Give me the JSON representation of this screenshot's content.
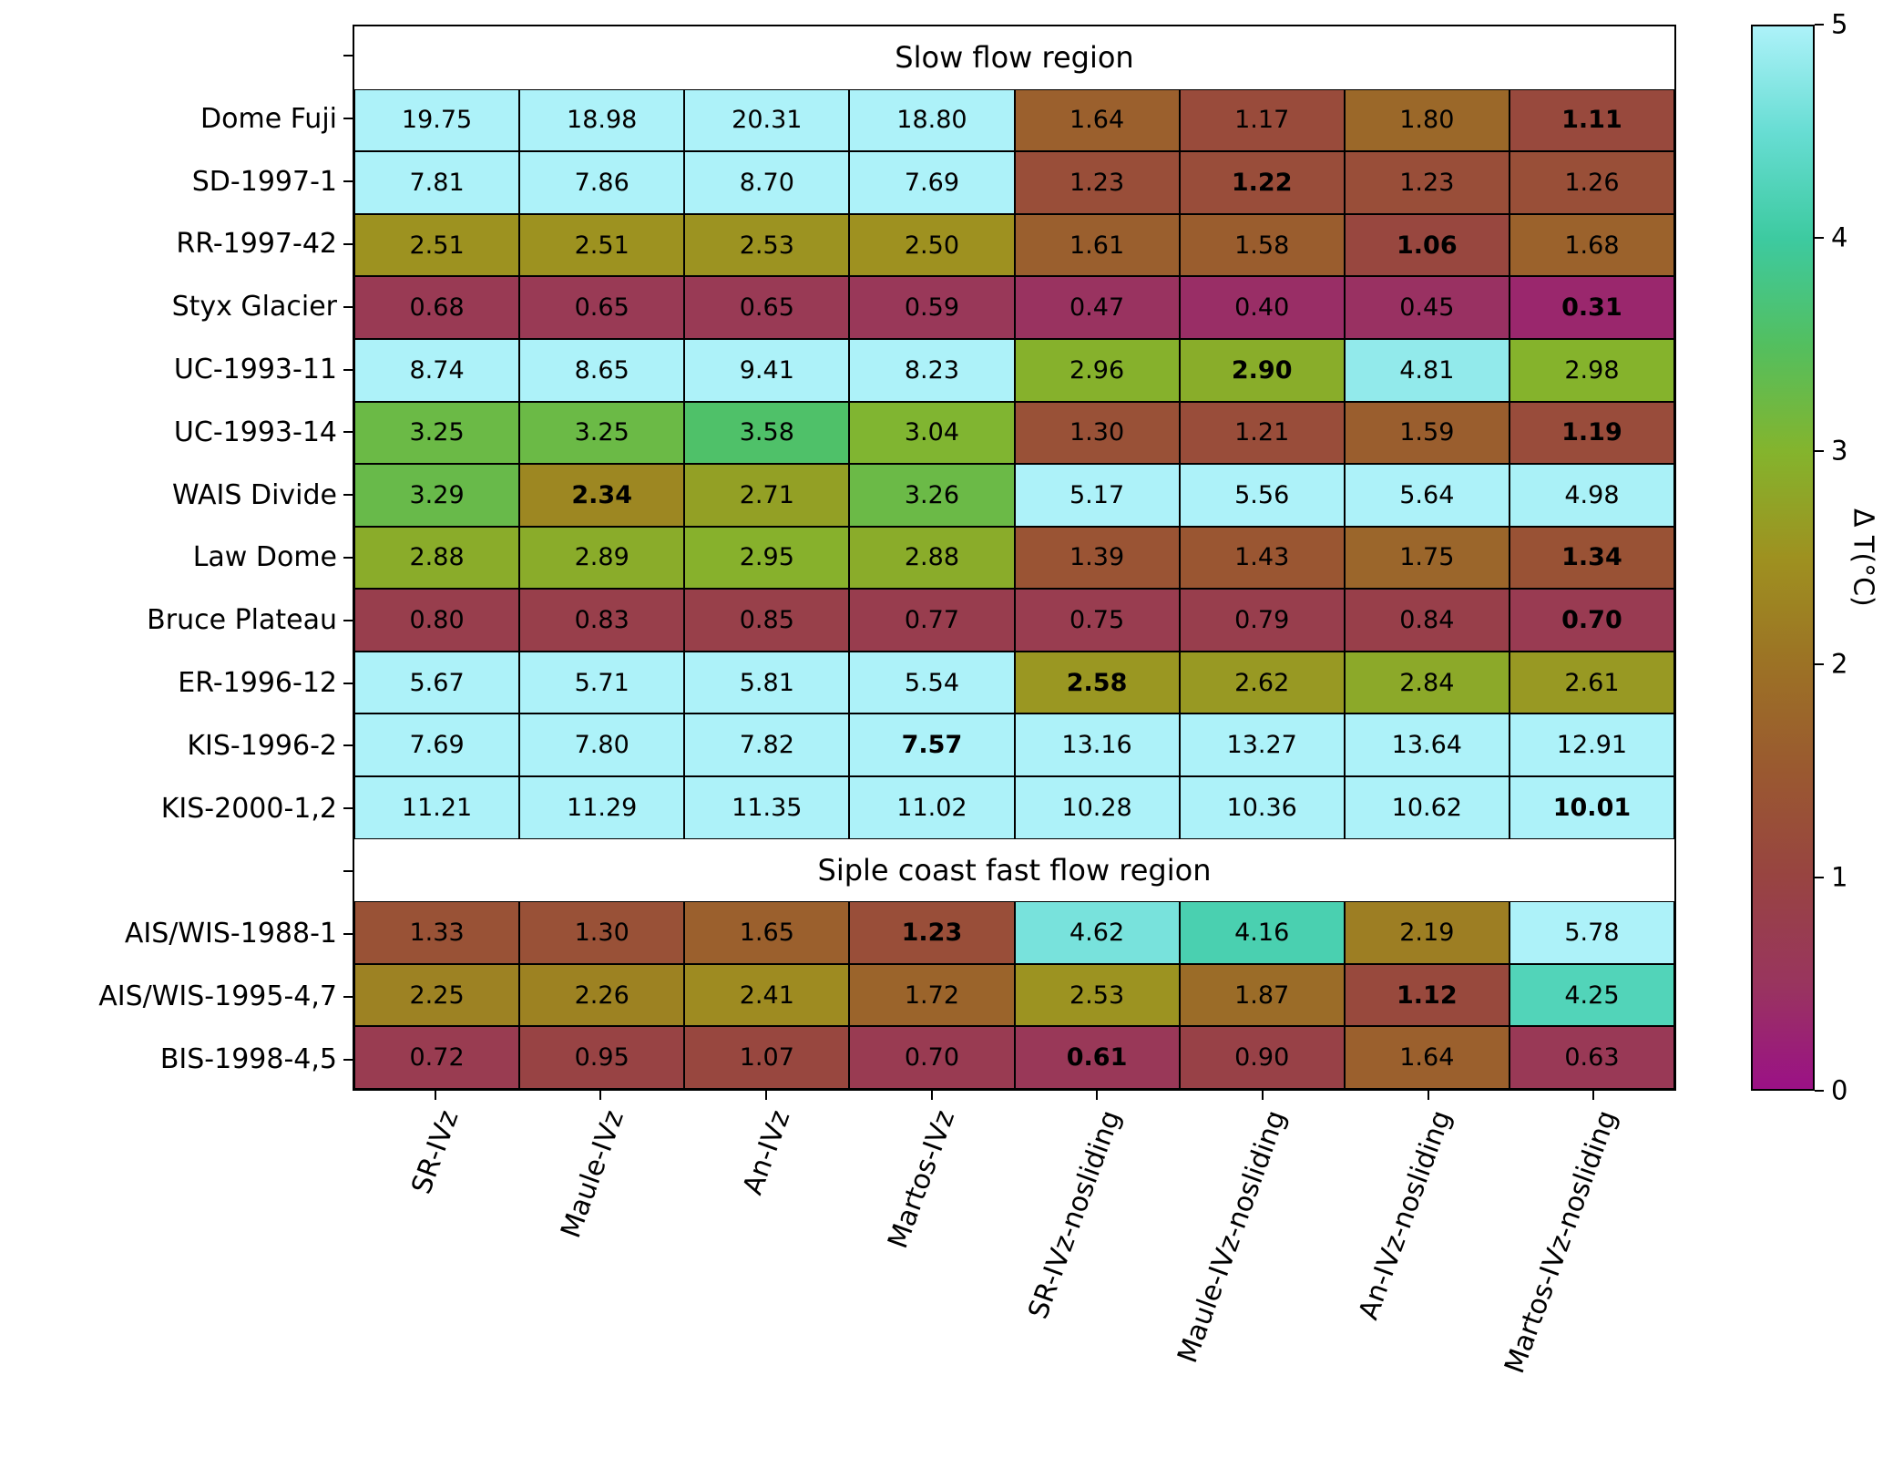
{
  "chart_data": {
    "type": "heatmap",
    "section_titles": [
      "Slow flow region",
      "Siple coast fast flow region"
    ],
    "columns": [
      "SR-IVz",
      "Maule-IVz",
      "An-IVz",
      "Martos-IVz",
      "SR-IVz-nosliding",
      "Maule-IVz-nosliding",
      "An-IVz-nosliding",
      "Martos-IVz-nosliding"
    ],
    "rows": [
      {
        "type": "header",
        "label": "Slow flow region"
      },
      {
        "type": "data",
        "label": "Dome Fuji",
        "values": [
          "19.75",
          "18.98",
          "20.31",
          "18.80",
          "1.64",
          "1.17",
          "1.80",
          "1.11"
        ],
        "bold_index": 7
      },
      {
        "type": "data",
        "label": "SD-1997-1",
        "values": [
          "7.81",
          "7.86",
          "8.70",
          "7.69",
          "1.23",
          "1.22",
          "1.23",
          "1.26"
        ],
        "bold_index": 5
      },
      {
        "type": "data",
        "label": "RR-1997-42",
        "values": [
          "2.51",
          "2.51",
          "2.53",
          "2.50",
          "1.61",
          "1.58",
          "1.06",
          "1.68"
        ],
        "bold_index": 6
      },
      {
        "type": "data",
        "label": "Styx Glacier",
        "values": [
          "0.68",
          "0.65",
          "0.65",
          "0.59",
          "0.47",
          "0.40",
          "0.45",
          "0.31"
        ],
        "bold_index": 7
      },
      {
        "type": "data",
        "label": "UC-1993-11",
        "values": [
          "8.74",
          "8.65",
          "9.41",
          "8.23",
          "2.96",
          "2.90",
          "4.81",
          "2.98"
        ],
        "bold_index": 5
      },
      {
        "type": "data",
        "label": "UC-1993-14",
        "values": [
          "3.25",
          "3.25",
          "3.58",
          "3.04",
          "1.30",
          "1.21",
          "1.59",
          "1.19"
        ],
        "bold_index": 7
      },
      {
        "type": "data",
        "label": "WAIS Divide",
        "values": [
          "3.29",
          "2.34",
          "2.71",
          "3.26",
          "5.17",
          "5.56",
          "5.64",
          "4.98"
        ],
        "bold_index": 1
      },
      {
        "type": "data",
        "label": "Law Dome",
        "values": [
          "2.88",
          "2.89",
          "2.95",
          "2.88",
          "1.39",
          "1.43",
          "1.75",
          "1.34"
        ],
        "bold_index": 7
      },
      {
        "type": "data",
        "label": "Bruce Plateau",
        "values": [
          "0.80",
          "0.83",
          "0.85",
          "0.77",
          "0.75",
          "0.79",
          "0.84",
          "0.70"
        ],
        "bold_index": 7
      },
      {
        "type": "data",
        "label": "ER-1996-12",
        "values": [
          "5.67",
          "5.71",
          "5.81",
          "5.54",
          "2.58",
          "2.62",
          "2.84",
          "2.61"
        ],
        "bold_index": 4
      },
      {
        "type": "data",
        "label": "KIS-1996-2",
        "values": [
          "7.69",
          "7.80",
          "7.82",
          "7.57",
          "13.16",
          "13.27",
          "13.64",
          "12.91"
        ],
        "bold_index": 3
      },
      {
        "type": "data",
        "label": "KIS-2000-1,2",
        "values": [
          "11.21",
          "11.29",
          "11.35",
          "11.02",
          "10.28",
          "10.36",
          "10.62",
          "10.01"
        ],
        "bold_index": 7
      },
      {
        "type": "header",
        "label": "Siple coast fast flow region"
      },
      {
        "type": "data",
        "label": "AIS/WIS-1988-1",
        "values": [
          "1.33",
          "1.30",
          "1.65",
          "1.23",
          "4.62",
          "4.16",
          "2.19",
          "5.78"
        ],
        "bold_index": 3
      },
      {
        "type": "data",
        "label": "AIS/WIS-1995-4,7",
        "values": [
          "2.25",
          "2.26",
          "2.41",
          "1.72",
          "2.53",
          "1.87",
          "1.12",
          "4.25"
        ],
        "bold_index": 6
      },
      {
        "type": "data",
        "label": "BIS-1998-4,5",
        "values": [
          "0.72",
          "0.95",
          "1.07",
          "0.70",
          "0.61",
          "0.90",
          "1.64",
          "0.63"
        ],
        "bold_index": 4
      }
    ],
    "colorbar": {
      "label": "Δ T(°C)",
      "min": 0,
      "max": 5,
      "ticks": [
        0,
        1,
        2,
        3,
        4,
        5
      ]
    },
    "colormap_stops": [
      {
        "t": 0.0,
        "color": "#9b1186"
      },
      {
        "t": 0.1,
        "color": "#99355e"
      },
      {
        "t": 0.2,
        "color": "#984441"
      },
      {
        "t": 0.3,
        "color": "#9a5930"
      },
      {
        "t": 0.4,
        "color": "#9c7225"
      },
      {
        "t": 0.5,
        "color": "#9e9120"
      },
      {
        "t": 0.6,
        "color": "#84b42d"
      },
      {
        "t": 0.7,
        "color": "#53bf5f"
      },
      {
        "t": 0.8,
        "color": "#3dcaa0"
      },
      {
        "t": 0.9,
        "color": "#67ddd3"
      },
      {
        "t": 1.0,
        "color": "#adf2f9"
      }
    ],
    "grid_line_color": "#000000",
    "text_color": "#000000"
  }
}
